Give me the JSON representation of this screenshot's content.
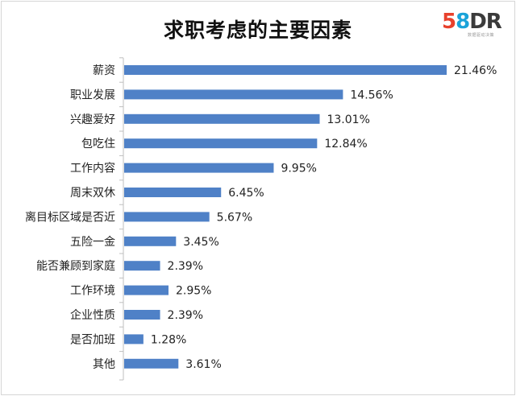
{
  "title": "求职考虑的主要因素",
  "logo": {
    "text_5": "5",
    "text_8": "8",
    "text_dr": "DR",
    "tagline": "数据驱动决策"
  },
  "colors": {
    "bar": "#4f81c7",
    "axis": "#bfbfbf",
    "text": "#222222"
  },
  "chart_data": {
    "type": "bar",
    "orientation": "horizontal",
    "title": "求职考虑的主要因素",
    "categories": [
      "薪资",
      "职业发展",
      "兴趣爱好",
      "包吃住",
      "工作内容",
      "周末双休",
      "离目标区域是否近",
      "五险一金",
      "能否兼顾到家庭",
      "工作环境",
      "企业性质",
      "是否加班",
      "其他"
    ],
    "values": [
      21.46,
      14.56,
      13.01,
      12.84,
      9.95,
      6.45,
      5.67,
      3.45,
      2.39,
      2.95,
      2.39,
      1.28,
      3.61
    ],
    "value_labels": [
      "21.46%",
      "14.56%",
      "13.01%",
      "12.84%",
      "9.95%",
      "6.45%",
      "5.67%",
      "3.45%",
      "2.39%",
      "2.95%",
      "2.39%",
      "1.28%",
      "3.61%"
    ],
    "xlim": [
      0,
      22
    ],
    "unit": "%",
    "grid": false,
    "legend": "none"
  }
}
